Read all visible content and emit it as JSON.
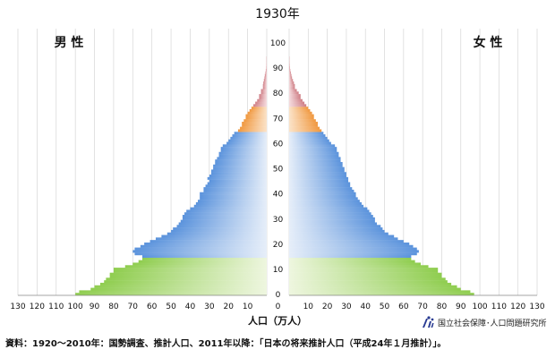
{
  "chart_data": {
    "type": "bar",
    "title": "1930年",
    "xlabel": "人口（万人）",
    "ylabel": "",
    "left_label": "男 性",
    "right_label": "女 性",
    "xlim": [
      130,
      0,
      130
    ],
    "ylim": [
      0,
      105
    ],
    "x_ticks": [
      130,
      120,
      110,
      100,
      90,
      80,
      70,
      60,
      50,
      40,
      30,
      20,
      10,
      0,
      10,
      20,
      30,
      40,
      50,
      60,
      70,
      80,
      90,
      100,
      110,
      120,
      130
    ],
    "y_ticks": [
      0,
      10,
      20,
      30,
      40,
      50,
      60,
      70,
      80,
      90,
      100
    ],
    "grid": true,
    "age_groups": [
      {
        "name": "0-14",
        "from": 0,
        "to": 14,
        "color": "#8fcd4f"
      },
      {
        "name": "15-64",
        "from": 15,
        "to": 64,
        "color": "#5b93dc"
      },
      {
        "name": "65-74",
        "from": 65,
        "to": 74,
        "color": "#f0983f"
      },
      {
        "name": "75+",
        "from": 75,
        "to": 105,
        "color": "#cf7f86"
      }
    ],
    "series": [
      {
        "name": "男 性",
        "values": [
          100,
          98,
          92,
          90,
          87,
          85,
          84,
          82,
          82,
          80,
          80,
          74,
          70,
          67,
          65,
          65,
          69,
          70,
          69,
          66,
          64,
          61,
          58,
          55,
          52,
          50,
          49,
          47,
          46,
          45,
          44,
          44,
          43,
          42,
          40,
          38,
          37,
          36,
          35,
          35,
          35,
          33,
          33,
          32,
          31,
          30,
          31,
          30,
          29,
          29,
          28,
          28,
          27,
          27,
          26,
          25,
          25,
          24,
          24,
          23,
          21,
          20,
          19,
          18,
          17,
          15,
          14,
          13,
          13,
          12,
          11,
          11,
          10,
          9,
          8,
          7,
          6,
          5,
          4,
          4,
          3,
          3,
          2,
          2,
          1.8,
          1.5,
          1.2,
          1,
          0.7,
          0.5,
          0.3,
          0.2,
          0.1,
          0.1,
          0.1,
          0,
          0,
          0,
          0,
          0,
          0,
          0,
          0,
          0,
          0,
          0
        ]
      },
      {
        "name": "女 性",
        "values": [
          97,
          95,
          90,
          88,
          85,
          83,
          82,
          80,
          80,
          78,
          78,
          73,
          69,
          66,
          64,
          64,
          67,
          68,
          67,
          65,
          63,
          60,
          57,
          55,
          52,
          50,
          49,
          48,
          46,
          45,
          45,
          44,
          43,
          42,
          41,
          39,
          38,
          37,
          36,
          35,
          35,
          34,
          33,
          32,
          32,
          31,
          31,
          30,
          30,
          29,
          29,
          28,
          28,
          27,
          27,
          26,
          26,
          25,
          25,
          24,
          22,
          21,
          20,
          19,
          18,
          17,
          16,
          15,
          15,
          14,
          13,
          13,
          12,
          11,
          10,
          9,
          8,
          7,
          6,
          6,
          5,
          4,
          3,
          3,
          2.5,
          2,
          1.5,
          1.2,
          0.9,
          0.6,
          0.4,
          0.3,
          0.2,
          0.1,
          0.1,
          0,
          0,
          0,
          0,
          0,
          0,
          0,
          0,
          0,
          0,
          0
        ]
      }
    ]
  },
  "footer": {
    "source_note": "資料：1920～2010年：国勢調査、推計人口、2011年以降：「日本の将来推計人口（平成24年１月推計）」。",
    "logo_text": "国立社会保障･人口問題研究所"
  }
}
